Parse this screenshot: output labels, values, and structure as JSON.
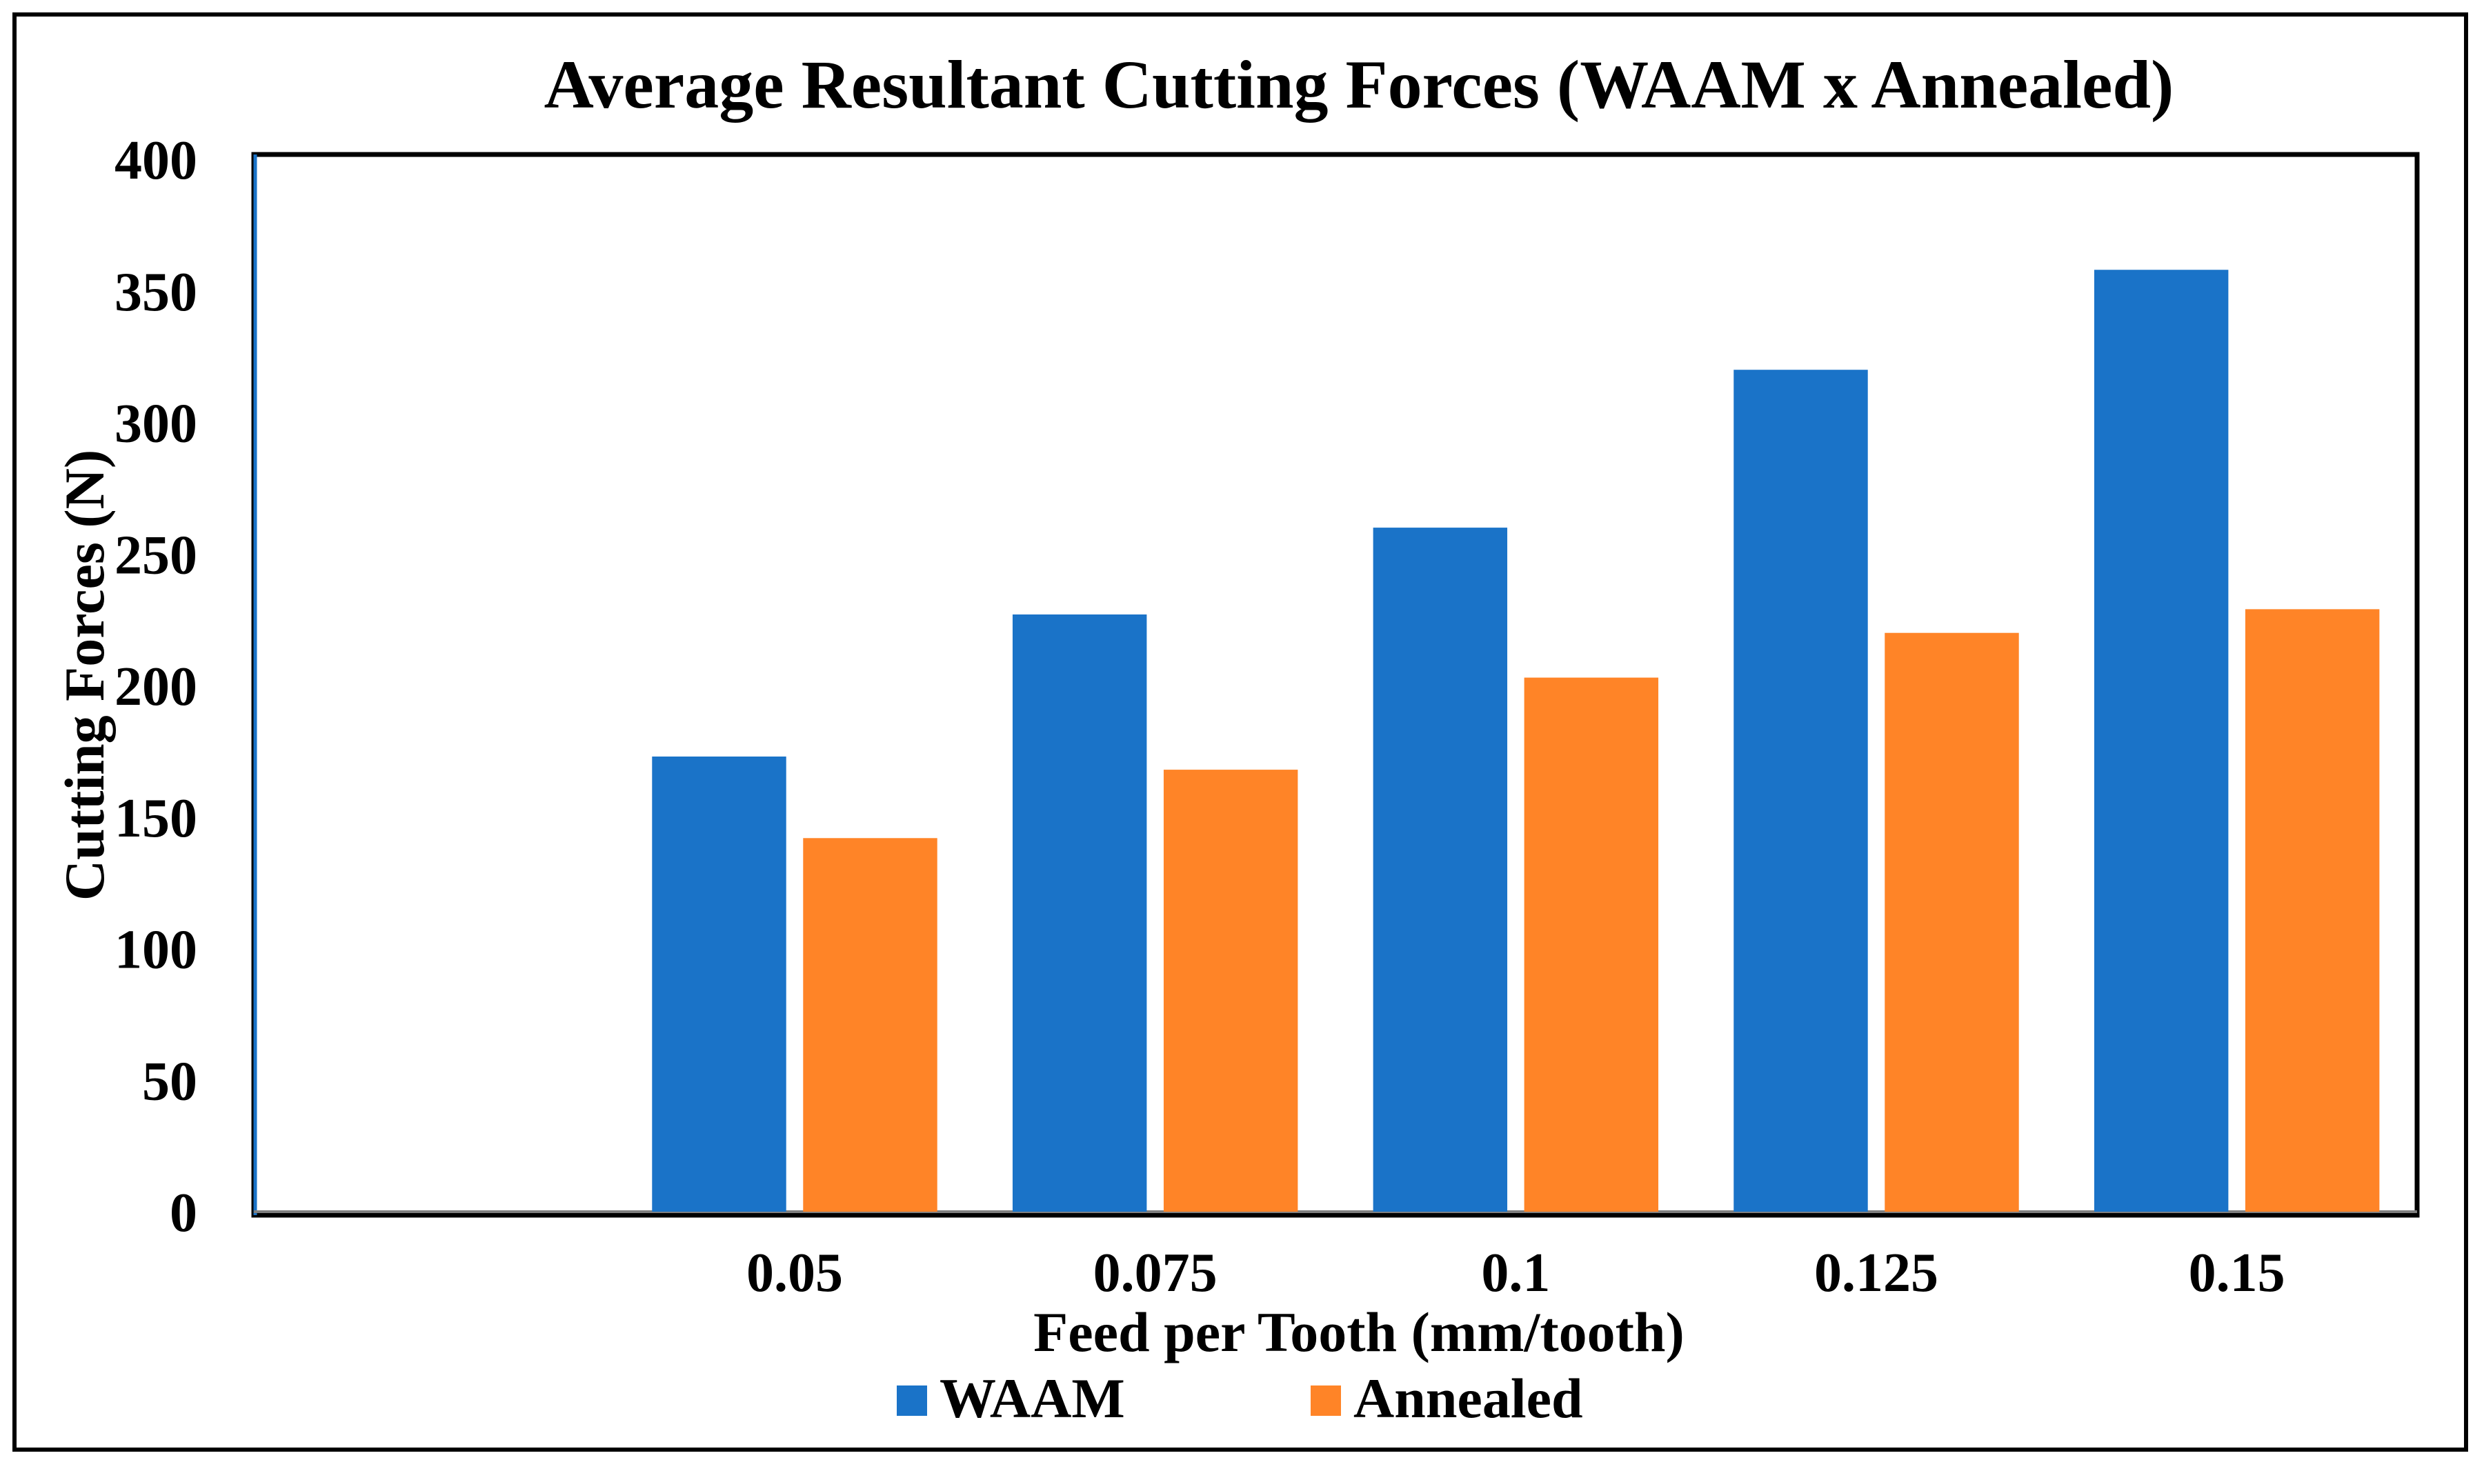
{
  "chart_data": {
    "type": "bar",
    "title": "Average Resultant Cutting Forces (WAAM x Annealed)",
    "xlabel": "Feed per Tooth (mm/tooth)",
    "ylabel": "Cutting Forces (N)",
    "categories": [
      "",
      "0.05",
      "0.075",
      "0.1",
      "0.125",
      "0.15"
    ],
    "series": [
      {
        "name": "WAAM",
        "color": "#1A73C8",
        "values": [
          null,
          173,
          227,
          260,
          320,
          358
        ]
      },
      {
        "name": "Annealed",
        "color": "#FF8427",
        "values": [
          null,
          142,
          168,
          203,
          220,
          229
        ]
      }
    ],
    "ylim": [
      0,
      400
    ],
    "yticks": [
      0,
      50,
      100,
      150,
      200,
      250,
      300,
      350,
      400
    ],
    "grid": false,
    "legend": "bottom"
  }
}
